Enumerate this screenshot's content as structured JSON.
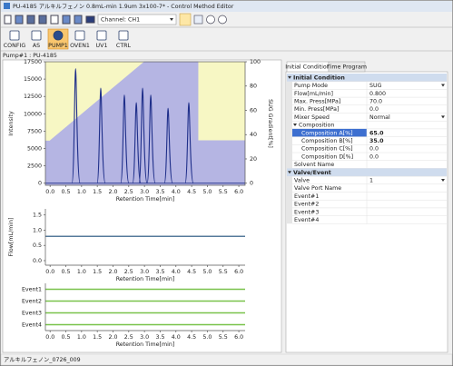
{
  "window": {
    "title": "PU-4185 アルキルフェノン 0.8mL-min 1.9um 3x100-7* - Control Method Editor"
  },
  "toolbar": {
    "channel": "Channel: CH1",
    "buttons": [
      "CONFIG",
      "AS",
      "PUMP1",
      "OVEN1",
      "UV1",
      "CTRL"
    ],
    "selected": 2
  },
  "breadcrumb": "Pump#1 : PU-4185",
  "chart_data": [
    {
      "type": "chromatogram",
      "xlabel": "Retention Time[min]",
      "ylabel": "Intensity",
      "y2label": "SUG Gradient[%]",
      "xlim": [
        -0.15,
        6.2
      ],
      "xticks": [
        {
          "value": 0,
          "label": "0.0"
        },
        0.5,
        {
          "value": 1,
          "label": "1.0"
        },
        1.5,
        {
          "value": 2,
          "label": "2.0"
        },
        2.5,
        {
          "value": 3,
          "label": "3.0"
        },
        3.5,
        {
          "value": 4,
          "label": "4.0"
        },
        4.5,
        {
          "value": 5,
          "label": "5.0"
        },
        5.5,
        {
          "value": 6,
          "label": "6.0"
        }
      ],
      "ylim": [
        -300,
        17500
      ],
      "yticks": [
        0,
        2500,
        5000,
        7500,
        10000,
        12500,
        15000,
        17500
      ],
      "y2lim": [
        -1.7,
        100
      ],
      "y2ticks": [
        0,
        20,
        40,
        60,
        80,
        100
      ],
      "background": "#f7f7c4",
      "gradient": {
        "axis": "y2",
        "color": "#b5b5e3",
        "x": [
          0,
          3,
          4.7,
          4.7,
          6.2
        ],
        "values": [
          35,
          100,
          100,
          35,
          35
        ]
      },
      "peaks": {
        "color": "#1f2f8a",
        "x": [
          0.81,
          1.61,
          2.36,
          2.74,
          2.94,
          3.2,
          3.75,
          4.41
        ],
        "values": [
          16500,
          13700,
          12700,
          11600,
          13700,
          12700,
          10800,
          11600
        ]
      }
    },
    {
      "type": "line",
      "xlabel": "Retention Time[min]",
      "ylabel": "Flow[mL/min]",
      "xlim": [
        -0.15,
        6.2
      ],
      "xticks": [
        {
          "value": 0,
          "label": "0.0"
        },
        0.5,
        {
          "value": 1,
          "label": "1.0"
        },
        1.5,
        {
          "value": 2,
          "label": "2.0"
        },
        2.5,
        {
          "value": 3,
          "label": "3.0"
        },
        3.5,
        {
          "value": 4,
          "label": "4.0"
        },
        4.5,
        {
          "value": 5,
          "label": "5.0"
        },
        5.5,
        {
          "value": 6,
          "label": "6.0"
        }
      ],
      "ylim": [
        -0.15,
        1.7
      ],
      "yticks": [
        {
          "value": 0,
          "label": "0.0"
        },
        0.5,
        {
          "value": 1,
          "label": "1.0"
        },
        1.5
      ],
      "series": [
        {
          "color": "#1f4f7a",
          "x": [
            -0.15,
            6.2
          ],
          "values": [
            0.8,
            0.8
          ]
        }
      ]
    },
    {
      "type": "events",
      "xlabel": "Retention Time[min]",
      "xlim": [
        -0.15,
        6.2
      ],
      "xticks": [
        {
          "value": 0,
          "label": "0.0"
        },
        0.5,
        {
          "value": 1,
          "label": "1.0"
        },
        1.5,
        {
          "value": 2,
          "label": "2.0"
        },
        2.5,
        {
          "value": 3,
          "label": "3.0"
        },
        3.5,
        {
          "value": 4,
          "label": "4.0"
        },
        4.5,
        {
          "value": 5,
          "label": "5.0"
        },
        5.5,
        {
          "value": 6,
          "label": "6.0"
        }
      ],
      "categories": [
        "Event1",
        "Event2",
        "Event3",
        "Event4"
      ],
      "color": "#79c24a"
    }
  ],
  "tabs": [
    "Initial Condition",
    "Time Program"
  ],
  "properties": {
    "selected": 7,
    "rows": [
      {
        "label": "Initial Condition",
        "section": true
      },
      {
        "label": "Pump Mode",
        "value": "SUG",
        "dropdown": true
      },
      {
        "label": "Flow[mL/min]",
        "value": "0.800"
      },
      {
        "label": "Max. Press[MPa]",
        "value": "70.0"
      },
      {
        "label": "Min. Press[MPa]",
        "value": "0.0"
      },
      {
        "label": "Mixer Speed",
        "value": "Normal",
        "dropdown": true
      },
      {
        "label": "Composition",
        "group": true
      },
      {
        "label": "Composition A[%]",
        "value": "65.0",
        "indent": true,
        "bold": true
      },
      {
        "label": "Composition B[%]",
        "value": "35.0",
        "indent": true,
        "bold": true
      },
      {
        "label": "Composition C[%]",
        "value": "0.0",
        "indent": true
      },
      {
        "label": "Composition D[%]",
        "value": "0.0",
        "indent": true
      },
      {
        "label": "Solvent Name"
      },
      {
        "label": "Valve/Event",
        "section": true
      },
      {
        "label": "Valve",
        "value": "1",
        "dropdown": true
      },
      {
        "label": "Valve Port Name"
      },
      {
        "label": "Event#1"
      },
      {
        "label": "Event#2"
      },
      {
        "label": "Event#3"
      },
      {
        "label": "Event#4"
      }
    ]
  },
  "status": "アルキルフェノン_0726_009"
}
